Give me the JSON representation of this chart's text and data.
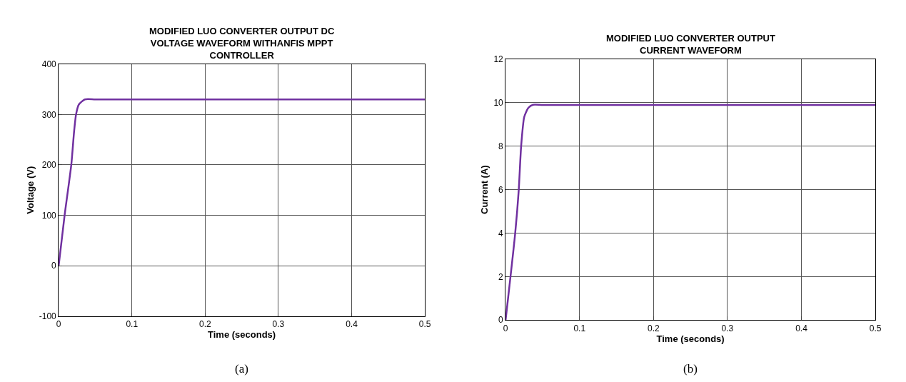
{
  "chart_data": [
    {
      "type": "line",
      "title": "MODIFIED LUO CONVERTER OUTPUT DC VOLTAGE WAVEFORM WITHANFIS MPPT CONTROLLER",
      "xlabel": "Time (seconds)",
      "ylabel": "Voltage (V)",
      "annotations": [
        "(a)"
      ],
      "series": [
        {
          "color": "#7030a0",
          "x": [
            0,
            0.0081,
            0.0172,
            0.0211,
            0.0237,
            0.0276,
            0.0357,
            0.05,
            0.1,
            0.2,
            0.3,
            0.4,
            0.5
          ],
          "values": [
            0,
            100,
            200,
            267,
            300,
            320,
            330,
            330,
            330,
            330,
            330,
            330,
            330
          ]
        }
      ],
      "xlim": [
        0,
        0.5
      ],
      "xticks": [
        0,
        0.1,
        0.2,
        0.3,
        0.4,
        0.5
      ],
      "ylim": [
        -100,
        400
      ],
      "yticks": [
        -100,
        0,
        100,
        200,
        300,
        400
      ],
      "grid": true,
      "line_style": "solid"
    },
    {
      "type": "line",
      "title": "MODIFIED LUO CONVERTER OUTPUT CURRENT WAVEFORM",
      "xlabel": "Time (seconds)",
      "ylabel": "Current (A)",
      "annotations": [
        "(b)"
      ],
      "series": [
        {
          "color": "#7030a0",
          "x": [
            0,
            0.0129,
            0.0177,
            0.021,
            0.0252,
            0.0306,
            0.0371,
            0.05,
            0.1,
            0.2,
            0.3,
            0.4,
            0.5
          ],
          "values": [
            0,
            3.97,
            5.95,
            8.0,
            9.35,
            9.76,
            9.91,
            9.9,
            9.9,
            9.9,
            9.9,
            9.9,
            9.9
          ]
        }
      ],
      "xlim": [
        0,
        0.5
      ],
      "xticks": [
        0,
        0.1,
        0.2,
        0.3,
        0.4,
        0.5
      ],
      "ylim": [
        0,
        12
      ],
      "yticks": [
        0,
        2,
        4,
        6,
        8,
        10,
        12
      ],
      "grid": true,
      "line_style": "solid"
    }
  ]
}
